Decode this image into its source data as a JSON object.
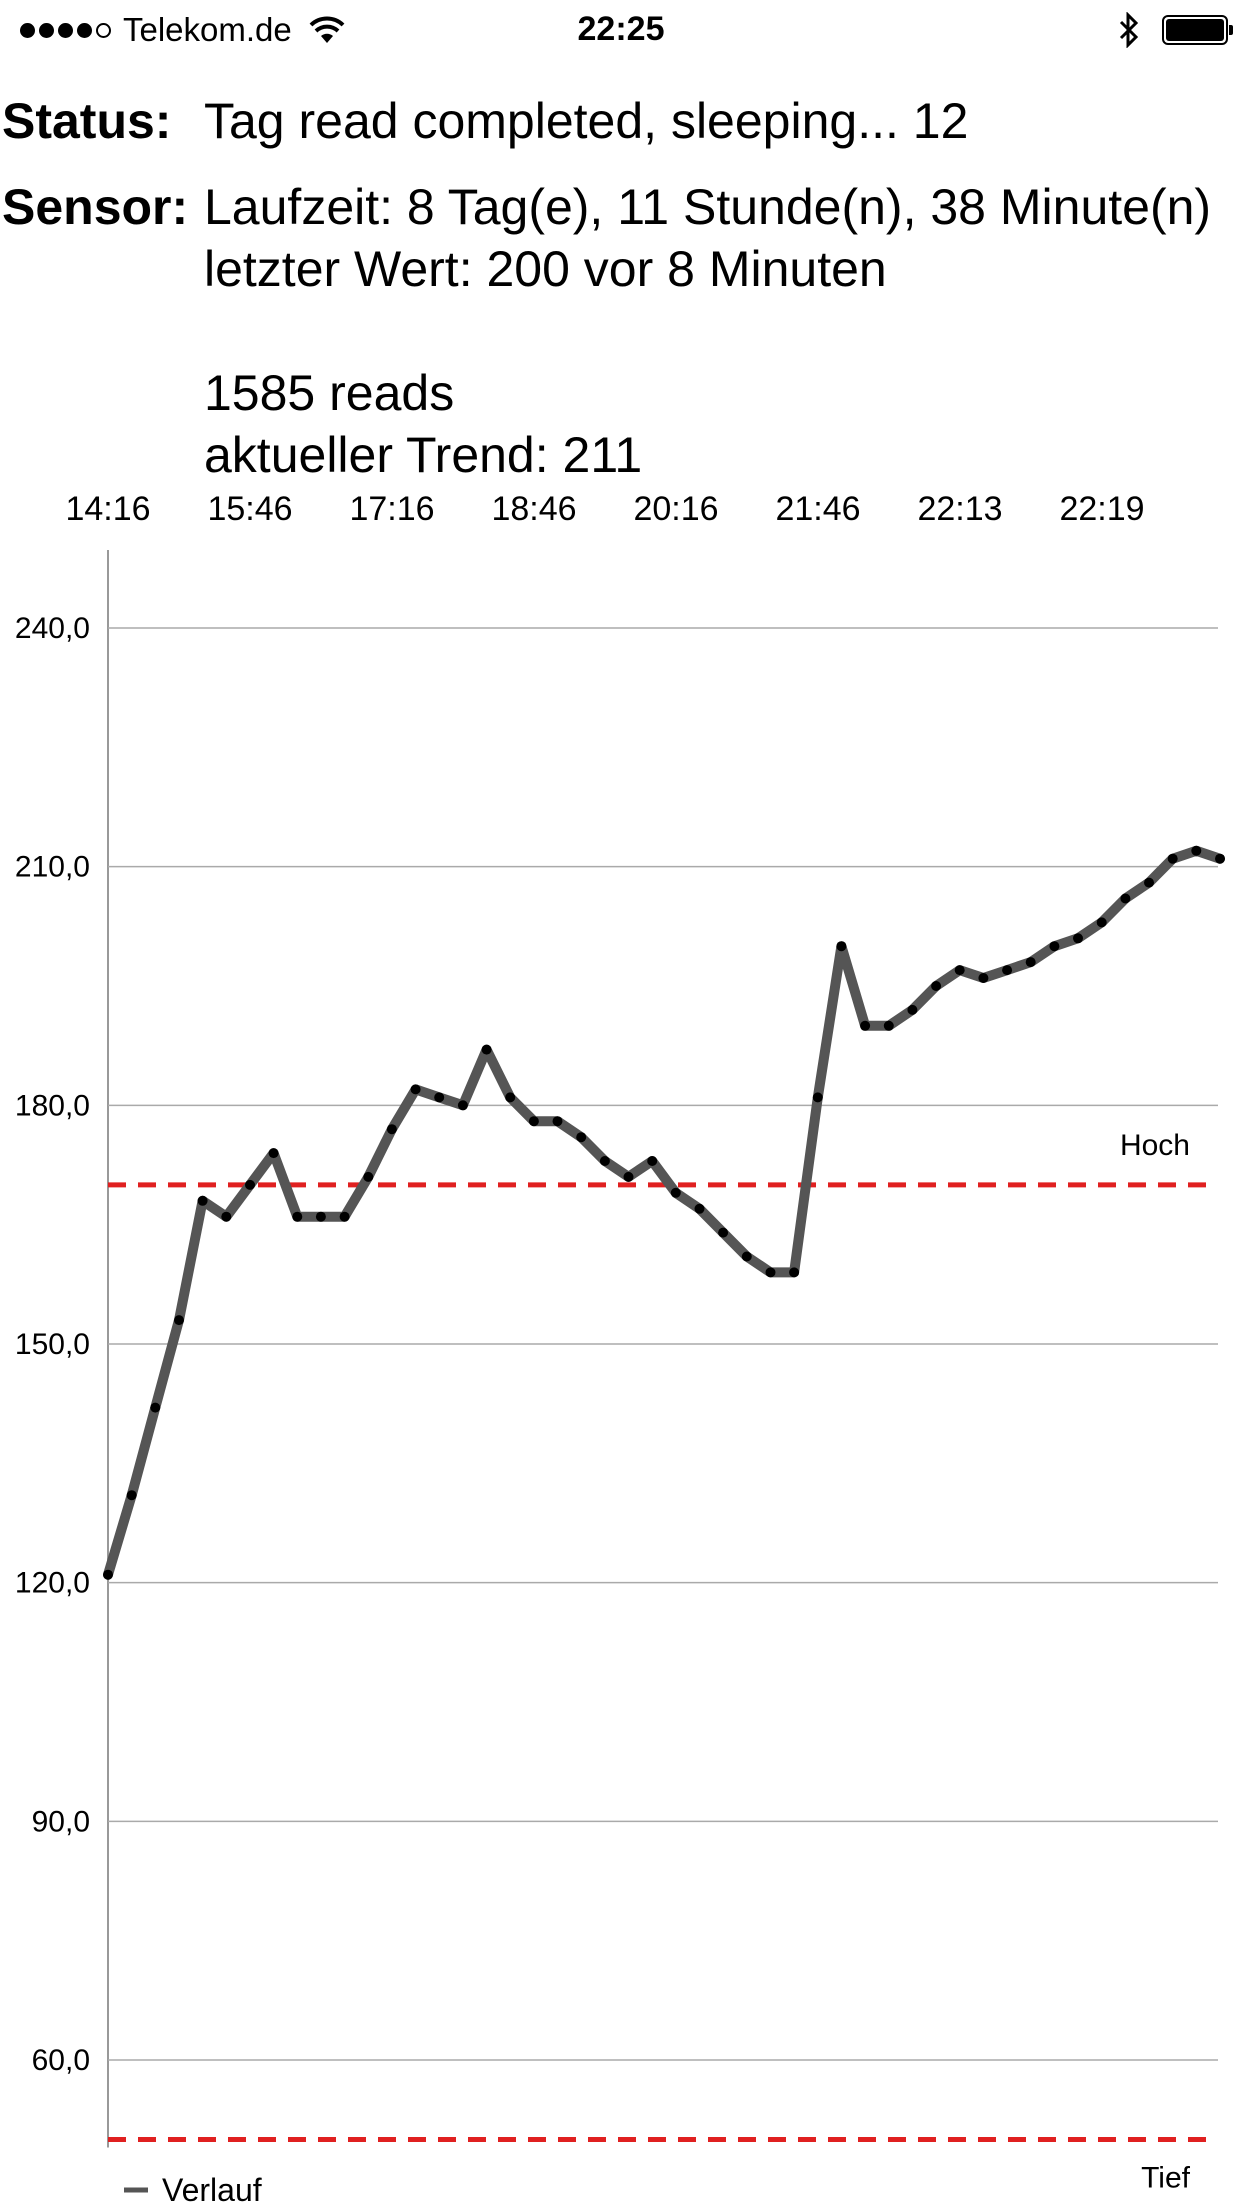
{
  "statusbar": {
    "carrier": "Telekom.de",
    "time": "22:25"
  },
  "status": {
    "label": "Status:",
    "text": "Tag read completed, sleeping... 12"
  },
  "sensor": {
    "label": "Sensor:",
    "runtime": "Laufzeit: 8 Tag(e), 11 Stunde(n), 38 Minute(n)",
    "last_value": "letzter Wert: 200 vor 8 Minuten",
    "reads": "1585 reads",
    "trend": "aktueller Trend: 211"
  },
  "chart_data": {
    "type": "line",
    "x_ticks": [
      "14:16",
      "15:46",
      "17:16",
      "18:46",
      "20:16",
      "21:46",
      "22:13",
      "22:19"
    ],
    "y_ticks": [
      "240,0",
      "210,0",
      "180,0",
      "150,0",
      "120,0",
      "90,0",
      "60,0"
    ],
    "ylim": [
      50,
      260
    ],
    "grid": true,
    "series": [
      {
        "name": "Verlauf",
        "color": "#555555",
        "values": [
          121,
          131,
          142,
          153,
          168,
          166,
          170,
          174,
          166,
          166,
          166,
          171,
          177,
          182,
          181,
          180,
          187,
          181,
          178,
          178,
          176,
          173,
          171,
          173,
          169,
          167,
          164,
          161,
          159,
          159,
          181,
          200,
          190,
          190,
          192,
          195,
          197,
          196,
          197,
          198,
          200,
          201,
          203,
          206,
          208,
          211,
          212,
          211
        ]
      }
    ],
    "thresholds": [
      {
        "label": "Hoch",
        "value": 170,
        "color": "#e02020"
      },
      {
        "label": "Tief",
        "value": 50,
        "color": "#e02020"
      }
    ],
    "legend": {
      "text": "Verlauf",
      "placement": "bottom-left"
    }
  }
}
